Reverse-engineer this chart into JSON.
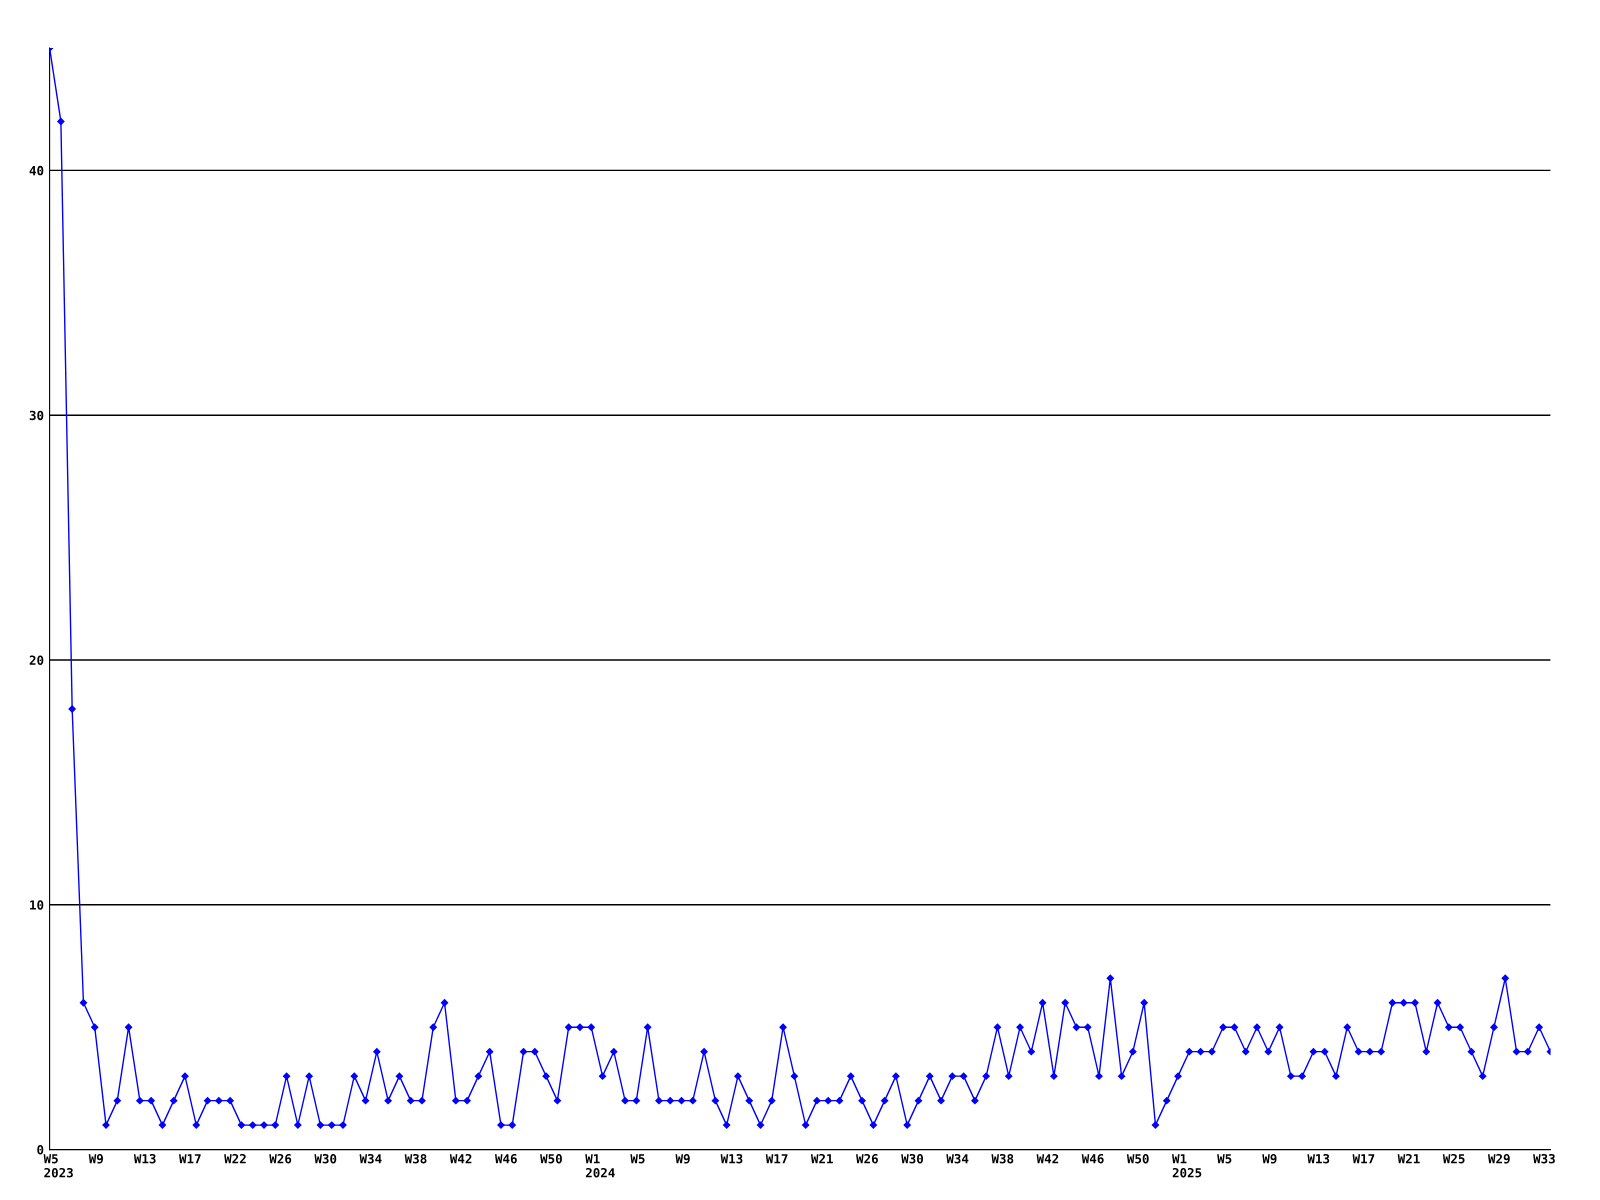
{
  "chart_data": {
    "type": "line",
    "categories": [
      "W5\n2023",
      null,
      null,
      null,
      "W9",
      null,
      null,
      null,
      "W13",
      null,
      null,
      null,
      "W17",
      null,
      null,
      null,
      "W22",
      null,
      null,
      null,
      "W26",
      null,
      null,
      null,
      "W30",
      null,
      null,
      null,
      "W34",
      null,
      null,
      null,
      "W38",
      null,
      null,
      null,
      "W42",
      null,
      null,
      null,
      "W46",
      null,
      null,
      null,
      "W50",
      null,
      null,
      null,
      "W1\n2024",
      null,
      null,
      null,
      "W5",
      null,
      null,
      null,
      "W9",
      null,
      null,
      null,
      "W13",
      null,
      null,
      null,
      "W17",
      null,
      null,
      null,
      "W21",
      null,
      null,
      null,
      "W26",
      null,
      null,
      null,
      "W30",
      null,
      null,
      null,
      "W34",
      null,
      null,
      null,
      "W38",
      null,
      null,
      null,
      "W42",
      null,
      null,
      null,
      "W46",
      null,
      null,
      null,
      "W50",
      null,
      null,
      null,
      "W1\n2025",
      null,
      null,
      null,
      "W5",
      null,
      null,
      null,
      "W9",
      null,
      null,
      null,
      "W13",
      null,
      null,
      null,
      "W17",
      null,
      null,
      null,
      "W21",
      null,
      null,
      null,
      "W25",
      null,
      null,
      null,
      "W29",
      null,
      null,
      null,
      "W33",
      null
    ],
    "series": [
      {
        "color": "#0000ff",
        "values": [
          45,
          42,
          18,
          6,
          5,
          1,
          2,
          5,
          2,
          2,
          1,
          2,
          3,
          1,
          2,
          2,
          2,
          1,
          1,
          1,
          1,
          3,
          1,
          3,
          1,
          1,
          1,
          3,
          2,
          4,
          2,
          3,
          2,
          2,
          5,
          6,
          2,
          2,
          3,
          4,
          1,
          1,
          4,
          4,
          3,
          2,
          5,
          5,
          5,
          3,
          4,
          2,
          2,
          5,
          2,
          2,
          2,
          2,
          4,
          2,
          1,
          3,
          2,
          1,
          2,
          5,
          3,
          1,
          2,
          2,
          2,
          3,
          2,
          1,
          2,
          3,
          1,
          2,
          3,
          2,
          3,
          3,
          2,
          3,
          5,
          3,
          5,
          4,
          6,
          3,
          6,
          5,
          5,
          3,
          7,
          3,
          4,
          6,
          1,
          2,
          3,
          4,
          4,
          4,
          5,
          5,
          4,
          5,
          4,
          5,
          3,
          3,
          4,
          4,
          3,
          5,
          4,
          4,
          4,
          6,
          6,
          6,
          4,
          6,
          5,
          5,
          4,
          3,
          5,
          7,
          4,
          4,
          5,
          4
        ]
      }
    ],
    "ylim": [
      0,
      45
    ],
    "yticks": [
      0,
      10,
      20,
      30,
      40
    ],
    "grid": "y",
    "marker": "diamond",
    "line_style": "solid",
    "legend": false
  }
}
